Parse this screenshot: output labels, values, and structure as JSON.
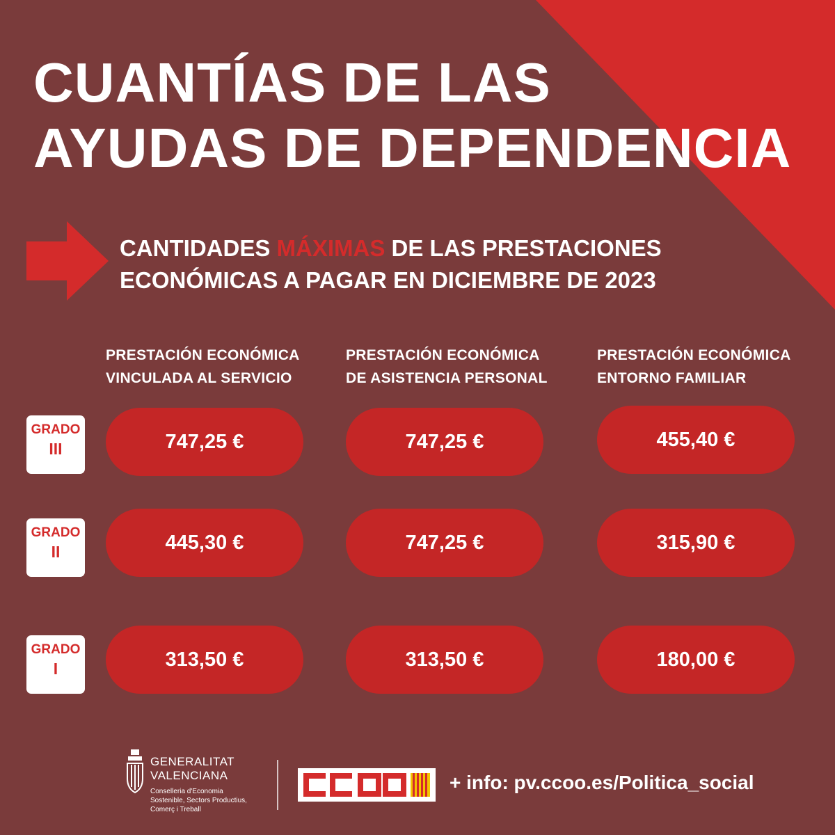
{
  "title": {
    "line1": "CUANTÍAS DE LAS",
    "line2": "AYUDAS DE DEPENDENCIA"
  },
  "subtitle": {
    "line1_pre": "CANTIDADES ",
    "line1_highlight": "MÁXIMAS",
    "line1_post": " DE LAS PRESTACIONES",
    "line2": "ECONÓMICAS A PAGAR EN DICIEMBRE DE 2023"
  },
  "columns": [
    {
      "line1": "PRESTACIÓN ECONÓMICA",
      "line2": "VINCULADA AL SERVICIO"
    },
    {
      "line1": "PRESTACIÓN ECONÓMICA",
      "line2": "DE ASISTENCIA PERSONAL"
    },
    {
      "line1": "PRESTACIÓN ECONÓMICA",
      "line2": "ENTORNO FAMILIAR"
    }
  ],
  "rows": [
    {
      "grade_label": "GRADO",
      "grade_level": "III",
      "values": [
        "747,25 €",
        "747,25 €",
        "455,40 €"
      ]
    },
    {
      "grade_label": "GRADO",
      "grade_level": "II",
      "values": [
        "445,30 €",
        "747,25 €",
        "315,90 €"
      ]
    },
    {
      "grade_label": "GRADO",
      "grade_level": "I",
      "values": [
        "313,50 €",
        "313,50 €",
        "180,00 €"
      ]
    }
  ],
  "footer": {
    "gv_line1": "GENERALITAT",
    "gv_line2": "VALENCIANA",
    "gv_dept1": "Conselleria d'Economia",
    "gv_dept2": "Sostenible, Sectors Productius,",
    "gv_dept3": "Comerç i Treball",
    "ccoo_logo_text": "CCOO",
    "info": "+ info: pv.ccoo.es/Politica_social"
  },
  "colors": {
    "background": "#7a3b3b",
    "accent_red": "#d42b2b",
    "pill_red": "#c42626",
    "text": "#ffffff"
  }
}
